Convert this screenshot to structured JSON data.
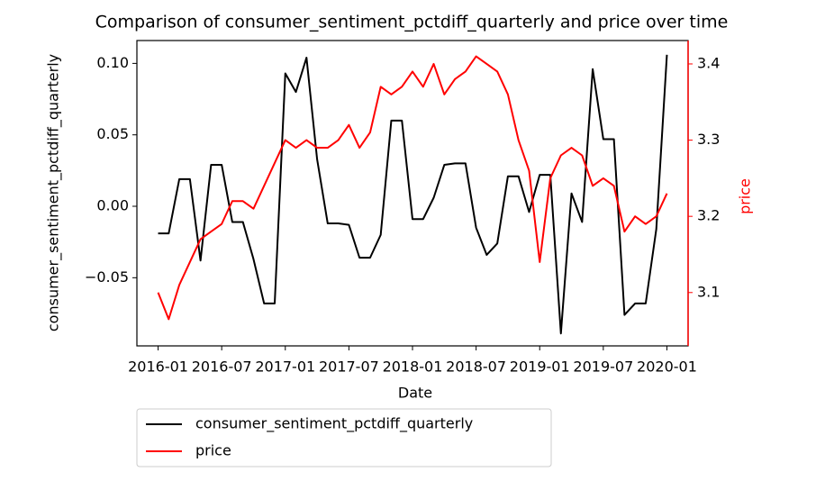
{
  "chart_data": {
    "type": "line",
    "title": "Comparison of consumer_sentiment_pctdiff_quarterly and price over time",
    "x_label": "Date",
    "y_label": "consumer_sentiment_pctdiff_quarterly",
    "y2_label": "price",
    "x": [
      "2016-01",
      "2016-02",
      "2016-03",
      "2016-04",
      "2016-05",
      "2016-06",
      "2016-07",
      "2016-08",
      "2016-09",
      "2016-10",
      "2016-11",
      "2016-12",
      "2017-01",
      "2017-02",
      "2017-03",
      "2017-04",
      "2017-05",
      "2017-06",
      "2017-07",
      "2017-08",
      "2017-09",
      "2017-10",
      "2017-11",
      "2017-12",
      "2018-01",
      "2018-02",
      "2018-03",
      "2018-04",
      "2018-05",
      "2018-06",
      "2018-07",
      "2018-08",
      "2018-09",
      "2018-10",
      "2018-11",
      "2018-12",
      "2019-01",
      "2019-02",
      "2019-03",
      "2019-04",
      "2019-05",
      "2019-06",
      "2019-07",
      "2019-08",
      "2019-09",
      "2019-10",
      "2019-11",
      "2019-12",
      "2020-01"
    ],
    "series": [
      {
        "name": "consumer_sentiment_pctdiff_quarterly",
        "color": "#000000",
        "axis": "y",
        "values": [
          -0.019,
          -0.019,
          0.019,
          0.019,
          -0.038,
          0.029,
          0.029,
          -0.011,
          -0.011,
          -0.037,
          -0.068,
          -0.068,
          0.093,
          0.08,
          0.104,
          0.033,
          -0.012,
          -0.012,
          -0.013,
          -0.036,
          -0.036,
          -0.02,
          0.06,
          0.06,
          -0.009,
          -0.009,
          0.006,
          0.029,
          0.03,
          0.03,
          -0.015,
          -0.034,
          -0.026,
          0.021,
          0.021,
          -0.004,
          0.022,
          0.022,
          -0.089,
          0.009,
          -0.011,
          0.096,
          0.047,
          0.047,
          -0.076,
          -0.068,
          -0.068,
          -0.016,
          0.106
        ]
      },
      {
        "name": "price",
        "color": "#ff0000",
        "axis": "y2",
        "values": [
          3.1,
          3.065,
          3.11,
          3.14,
          3.17,
          3.18,
          3.19,
          3.22,
          3.22,
          3.21,
          3.24,
          3.27,
          3.3,
          3.29,
          3.3,
          3.29,
          3.29,
          3.3,
          3.32,
          3.29,
          3.31,
          3.37,
          3.36,
          3.37,
          3.39,
          3.37,
          3.4,
          3.36,
          3.38,
          3.39,
          3.41,
          3.4,
          3.39,
          3.36,
          3.3,
          3.26,
          3.14,
          3.25,
          3.28,
          3.29,
          3.28,
          3.24,
          3.25,
          3.24,
          3.18,
          3.2,
          3.19,
          3.2,
          3.23
        ]
      }
    ],
    "xlim": [
      "2015-11",
      "2020-03"
    ],
    "xticks": [
      "2016-01",
      "2016-07",
      "2017-01",
      "2017-07",
      "2018-01",
      "2018-07",
      "2019-01",
      "2019-07",
      "2020-01"
    ],
    "ylim": [
      -0.0977,
      0.116
    ],
    "yticks": [
      {
        "value": -0.05,
        "label": "−0.05"
      },
      {
        "value": 0,
        "label": "0.00"
      },
      0.05,
      {
        "value": 0.1,
        "label": "0.10"
      }
    ],
    "y2lim": [
      3.03,
      3.4307
    ],
    "y2ticks": [
      3.1,
      3.2,
      3.3,
      3.4
    ],
    "y2_color": "#ff0000",
    "legend": "below"
  }
}
